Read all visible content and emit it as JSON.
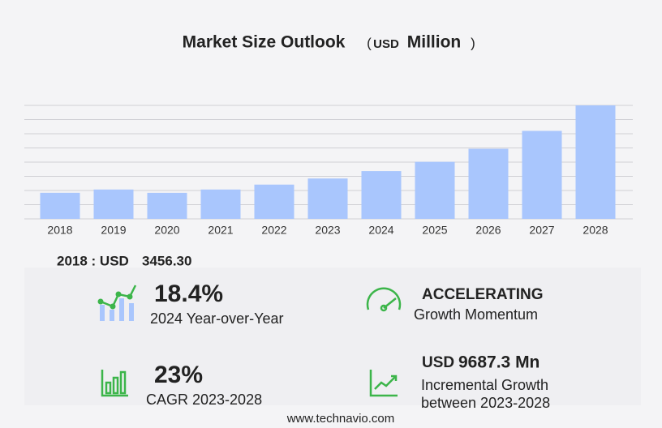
{
  "chart_data": {
    "type": "bar",
    "title": "Market Size Outlook",
    "title_open": "(",
    "title_unit": "USD",
    "title_unit_name": "Million",
    "title_close": ")",
    "categories": [
      "2018",
      "2019",
      "2020",
      "2021",
      "2022",
      "2023",
      "2024",
      "2025",
      "2026",
      "2027",
      "2028"
    ],
    "values": [
      3456.3,
      3890,
      3450,
      3890,
      4540,
      5350,
      6330,
      7560,
      9290,
      11660,
      15040
    ],
    "color": "#a9c6fd",
    "ylim": [
      0,
      15040
    ],
    "grid": true
  },
  "summary": {
    "base_label": "2018 : USD",
    "base_value": "3456.30"
  },
  "metrics": [
    {
      "value": "18.4%",
      "label": "2024 Year-over-Year"
    },
    {
      "value": "ACCELERATING",
      "label": "Growth Momentum"
    },
    {
      "value": "23%",
      "label": "CAGR 2023-2028"
    },
    {
      "unit": "USD",
      "value": "9687.3 Mn",
      "label": "Incremental Growth",
      "label2": "between 2023-2028"
    }
  ],
  "footer": "www.technavio.com"
}
